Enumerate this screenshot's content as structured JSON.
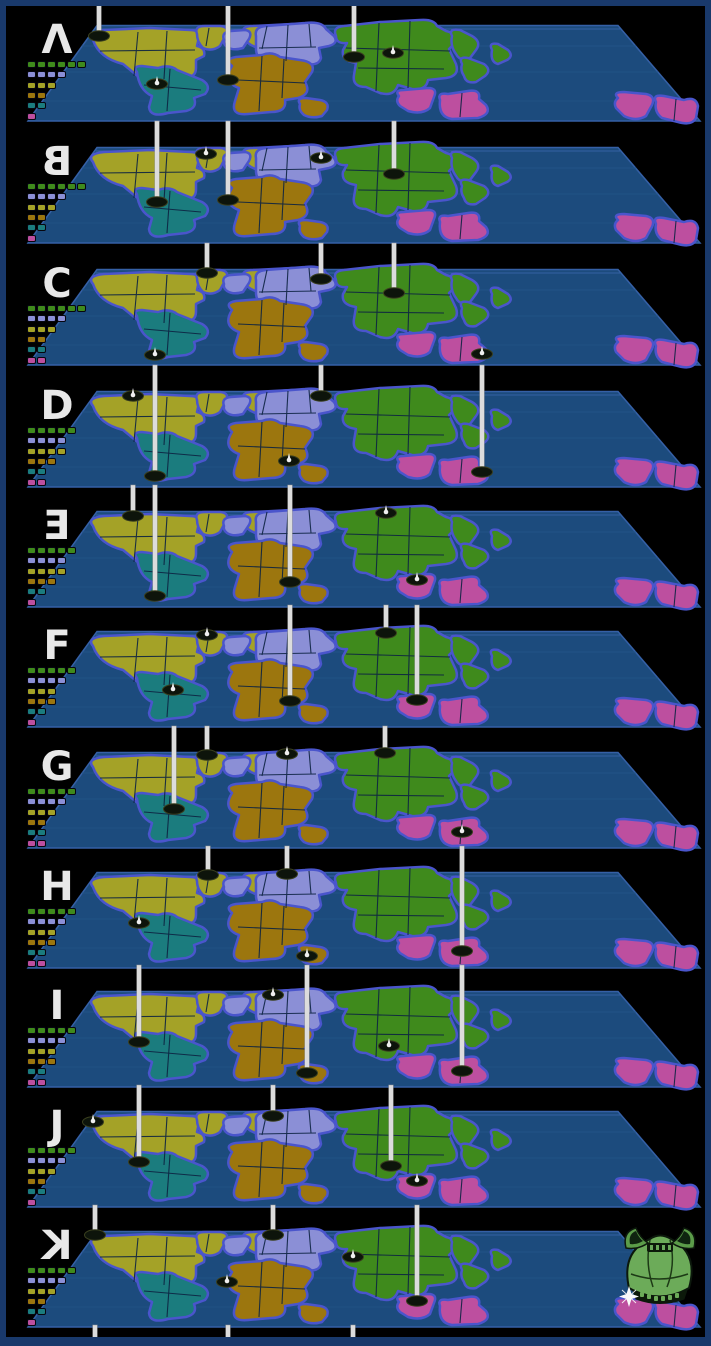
{
  "board": {
    "description_label": "layered-world-risk-board",
    "layer_count": 11
  },
  "colors": {
    "background": "#000000",
    "frame": "#19396b",
    "sea": "#1c4b7d",
    "map_edge": "#3560a6",
    "graticule": "#245689",
    "continent_outline": "#4a55cc",
    "territory_border": "#0d2342",
    "north_america": "#a4a227",
    "south_america": "#1b7c7e",
    "europe": "#8b8fd6",
    "africa": "#9c760e",
    "asia": "#3f8a1c",
    "australia": "#bd4f9f",
    "pillar": "#dcdcdc",
    "hole": "#0d140b",
    "letter": "#e8e8e8"
  },
  "legend_order": [
    "asia",
    "europe",
    "north_america",
    "africa",
    "south_america",
    "australia"
  ],
  "layers": [
    {
      "label": "A",
      "display": "Λ",
      "mirrored": false,
      "legend": [
        6,
        4,
        3,
        2,
        2,
        1
      ],
      "pillars": [
        [
          99,
          30
        ],
        [
          228,
          74
        ],
        [
          354,
          51
        ]
      ],
      "tips": [
        [
          157,
          78
        ],
        [
          393,
          47
        ]
      ],
      "top_stubs": true
    },
    {
      "label": "B",
      "display": "B",
      "mirrored": true,
      "legend": [
        6,
        4,
        3,
        2,
        2,
        1
      ],
      "pillars": [
        [
          157,
          74
        ],
        [
          228,
          72
        ],
        [
          394,
          46
        ]
      ],
      "tips": [
        [
          206,
          26
        ],
        [
          321,
          30
        ]
      ]
    },
    {
      "label": "C",
      "display": "C",
      "mirrored": false,
      "legend": [
        6,
        4,
        3,
        2,
        2,
        2
      ],
      "pillars": [
        [
          207,
          23
        ],
        [
          321,
          29
        ],
        [
          394,
          43
        ]
      ],
      "tips": [
        [
          155,
          105
        ],
        [
          482,
          104
        ]
      ]
    },
    {
      "label": "D",
      "display": "D",
      "mirrored": false,
      "legend": [
        5,
        4,
        4,
        3,
        2,
        2
      ],
      "pillars": [
        [
          155,
          104
        ],
        [
          321,
          24
        ],
        [
          482,
          100
        ]
      ],
      "tips": [
        [
          133,
          24
        ],
        [
          289,
          89
        ]
      ]
    },
    {
      "label": "E",
      "display": "E",
      "mirrored": true,
      "legend": [
        5,
        4,
        4,
        3,
        2,
        1
      ],
      "pillars": [
        [
          133,
          24
        ],
        [
          155,
          104
        ],
        [
          290,
          90
        ]
      ],
      "tips": [
        [
          386,
          21
        ],
        [
          417,
          88
        ]
      ]
    },
    {
      "label": "F",
      "display": "F",
      "mirrored": false,
      "legend": [
        5,
        4,
        3,
        3,
        2,
        1
      ],
      "pillars": [
        [
          290,
          89
        ],
        [
          386,
          21
        ],
        [
          417,
          88
        ]
      ],
      "tips": [
        [
          207,
          23
        ],
        [
          173,
          78
        ]
      ]
    },
    {
      "label": "G",
      "display": "G",
      "mirrored": false,
      "legend": [
        5,
        4,
        3,
        2,
        2,
        2
      ],
      "pillars": [
        [
          174,
          76
        ],
        [
          207,
          22
        ],
        [
          385,
          20
        ]
      ],
      "tips": [
        [
          287,
          21
        ],
        [
          462,
          99
        ]
      ]
    },
    {
      "label": "H",
      "display": "H",
      "mirrored": false,
      "legend": [
        5,
        4,
        3,
        3,
        2,
        2
      ],
      "pillars": [
        [
          208,
          22
        ],
        [
          287,
          21
        ],
        [
          462,
          98
        ]
      ],
      "tips": [
        [
          139,
          70
        ],
        [
          307,
          103
        ]
      ]
    },
    {
      "label": "I",
      "display": "I",
      "mirrored": false,
      "legend": [
        5,
        4,
        3,
        3,
        2,
        2
      ],
      "pillars": [
        [
          139,
          70
        ],
        [
          307,
          101
        ],
        [
          462,
          99
        ]
      ],
      "tips": [
        [
          273,
          23
        ],
        [
          389,
          74
        ]
      ]
    },
    {
      "label": "J",
      "display": "J",
      "mirrored": false,
      "legend": [
        5,
        4,
        3,
        2,
        2,
        1
      ],
      "pillars": [
        [
          139,
          70
        ],
        [
          273,
          24
        ],
        [
          391,
          74
        ]
      ],
      "tips": [
        [
          93,
          30
        ],
        [
          417,
          89
        ]
      ]
    },
    {
      "label": "K",
      "display": "K",
      "mirrored": true,
      "legend": [
        5,
        4,
        3,
        2,
        2,
        1
      ],
      "pillars": [
        [
          95,
          23
        ],
        [
          273,
          23
        ],
        [
          417,
          89
        ]
      ],
      "tips": [
        [
          227,
          70
        ],
        [
          353,
          45
        ]
      ],
      "bottom_stubs": [
        95,
        228,
        353
      ],
      "has_logo": true
    }
  ],
  "logo": {
    "name": "alien-ship-logo",
    "sparkle": "star"
  }
}
